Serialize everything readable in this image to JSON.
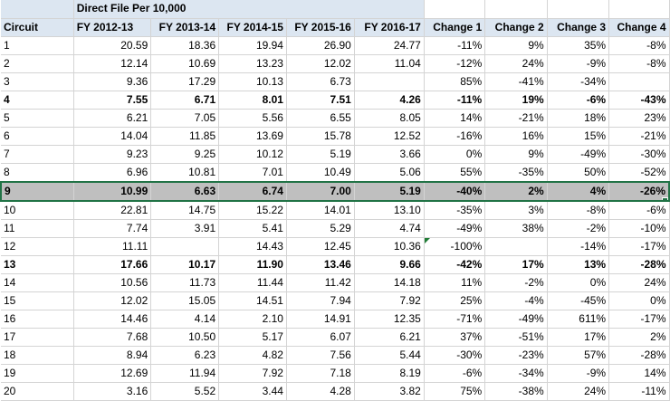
{
  "sheet": {
    "title": "Direct File Per 10,000",
    "headers": [
      "Circuit",
      "FY 2012-13",
      "FY 2013-14",
      "FY 2014-15",
      "FY 2015-16",
      "FY 2016-17",
      "Change 1",
      "Change 2",
      "Change  3",
      "Change 4"
    ],
    "accent_color": "#217346",
    "header_fill": "#dce6f1",
    "selected_fill": "#bfbfbf",
    "rows": [
      [
        "1",
        "20.59",
        "18.36",
        "19.94",
        "26.90",
        "24.77",
        "-11%",
        "9%",
        "35%",
        "-8%"
      ],
      [
        "2",
        "12.14",
        "10.69",
        "13.23",
        "12.02",
        "11.04",
        "-12%",
        "24%",
        "-9%",
        "-8%"
      ],
      [
        "3",
        "9.36",
        "17.29",
        "10.13",
        "6.73",
        "",
        "85%",
        "-41%",
        "-34%",
        ""
      ],
      [
        "4",
        "7.55",
        "6.71",
        "8.01",
        "7.51",
        "4.26",
        "-11%",
        "19%",
        "-6%",
        "-43%"
      ],
      [
        "5",
        "6.21",
        "7.05",
        "5.56",
        "6.55",
        "8.05",
        "14%",
        "-21%",
        "18%",
        "23%"
      ],
      [
        "6",
        "14.04",
        "11.85",
        "13.69",
        "15.78",
        "12.52",
        "-16%",
        "16%",
        "15%",
        "-21%"
      ],
      [
        "7",
        "9.23",
        "9.25",
        "10.12",
        "5.19",
        "3.66",
        "0%",
        "9%",
        "-49%",
        "-30%"
      ],
      [
        "8",
        "6.96",
        "10.81",
        "7.01",
        "10.49",
        "5.06",
        "55%",
        "-35%",
        "50%",
        "-52%"
      ],
      [
        "9",
        "10.99",
        "6.63",
        "6.74",
        "7.00",
        "5.19",
        "-40%",
        "2%",
        "4%",
        "-26%"
      ],
      [
        "10",
        "22.81",
        "14.75",
        "15.22",
        "14.01",
        "13.10",
        "-35%",
        "3%",
        "-8%",
        "-6%"
      ],
      [
        "11",
        "7.74",
        "3.91",
        "5.41",
        "5.29",
        "4.74",
        "-49%",
        "38%",
        "-2%",
        "-10%"
      ],
      [
        "12",
        "11.11",
        "",
        "14.43",
        "12.45",
        "10.36",
        "-100%",
        "",
        "-14%",
        "-17%"
      ],
      [
        "13",
        "17.66",
        "10.17",
        "11.90",
        "13.46",
        "9.66",
        "-42%",
        "17%",
        "13%",
        "-28%"
      ],
      [
        "14",
        "10.56",
        "11.73",
        "11.44",
        "11.42",
        "14.18",
        "11%",
        "-2%",
        "0%",
        "24%"
      ],
      [
        "15",
        "12.02",
        "15.05",
        "14.51",
        "7.94",
        "7.92",
        "25%",
        "-4%",
        "-45%",
        "0%"
      ],
      [
        "16",
        "14.46",
        "4.14",
        "2.10",
        "14.91",
        "12.35",
        "-71%",
        "-49%",
        "611%",
        "-17%"
      ],
      [
        "17",
        "7.68",
        "10.50",
        "5.17",
        "6.07",
        "6.21",
        "37%",
        "-51%",
        "17%",
        "2%"
      ],
      [
        "18",
        "8.94",
        "6.23",
        "4.82",
        "7.56",
        "5.44",
        "-30%",
        "-23%",
        "57%",
        "-28%"
      ],
      [
        "19",
        "12.69",
        "11.94",
        "7.92",
        "7.18",
        "8.19",
        "-6%",
        "-34%",
        "-9%",
        "14%"
      ],
      [
        "20",
        "3.16",
        "5.52",
        "3.44",
        "4.28",
        "3.82",
        "75%",
        "-38%",
        "24%",
        "-11%"
      ]
    ]
  }
}
